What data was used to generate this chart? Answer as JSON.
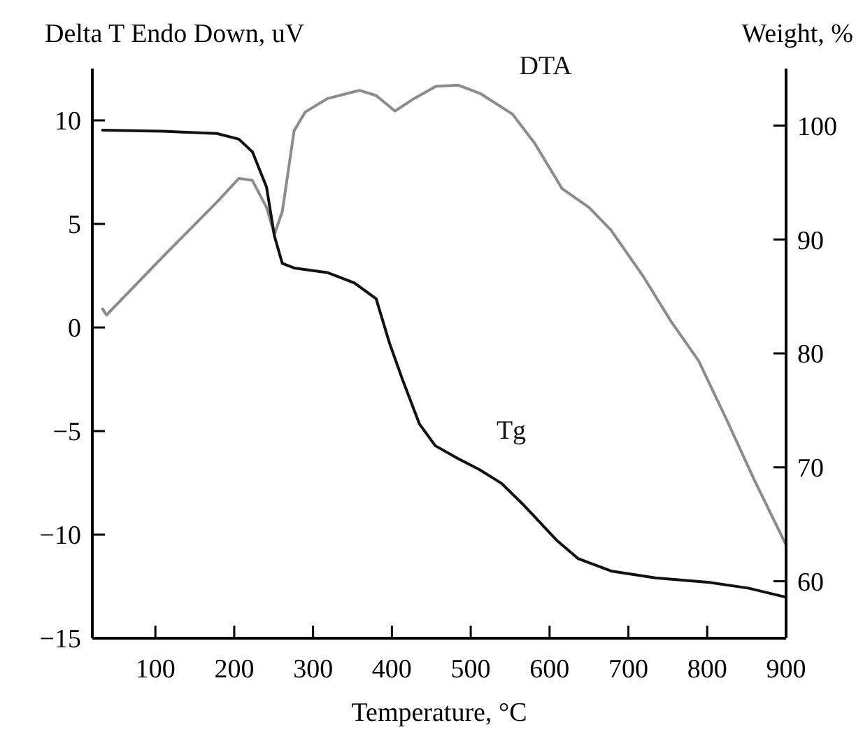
{
  "chart_data": {
    "type": "line",
    "xlabel": "Temperature, °C",
    "ylabel": "Delta T Endo Down, uV",
    "y2label": "Weight, %",
    "xlim": [
      20,
      900
    ],
    "xticks": [
      100,
      200,
      300,
      400,
      500,
      600,
      700,
      800,
      900
    ],
    "ylim": [
      -15,
      12.5
    ],
    "yticks": [
      -15,
      -10,
      -5,
      0,
      5,
      10
    ],
    "y2lim": [
      55,
      105
    ],
    "y2ticks": [
      60,
      70,
      80,
      90,
      100
    ],
    "grid": false,
    "legend": false,
    "marker": "none",
    "line_style": "solid",
    "series": [
      {
        "name": "DTA",
        "color": "#8c8c8c",
        "x": [
          33,
          38,
          109,
          178,
          206,
          223,
          241,
          251,
          261,
          276,
          290,
          318,
          359,
          380,
          404,
          428,
          456,
          484,
          512,
          553,
          581,
          616,
          650,
          678,
          720,
          754,
          789,
          824,
          859,
          900
        ],
        "values": [
          0.9,
          0.6,
          3.4,
          6.05,
          7.2,
          7.1,
          5.8,
          4.5,
          5.6,
          9.5,
          10.4,
          11.05,
          11.45,
          11.2,
          10.45,
          11.05,
          11.65,
          11.7,
          11.3,
          10.3,
          8.9,
          6.7,
          5.8,
          4.7,
          2.4,
          0.3,
          -1.6,
          -4.4,
          -7.3,
          -10.5
        ]
      },
      {
        "name": "Tg",
        "color": "#111111",
        "axis": "y2",
        "x": [
          33,
          109,
          178,
          206,
          223,
          241,
          251,
          261,
          276,
          318,
          352,
          380,
          397,
          414,
          435,
          455,
          483,
          511,
          539,
          567,
          609,
          636,
          678,
          734,
          803,
          852,
          900
        ],
        "values": [
          99.6,
          99.5,
          99.3,
          98.8,
          97.7,
          94.6,
          90.3,
          87.9,
          87.5,
          87.1,
          86.2,
          84.8,
          80.9,
          77.6,
          73.8,
          71.9,
          70.8,
          69.8,
          68.6,
          66.7,
          63.6,
          62.0,
          60.9,
          60.3,
          59.9,
          59.4,
          58.6
        ]
      }
    ]
  }
}
